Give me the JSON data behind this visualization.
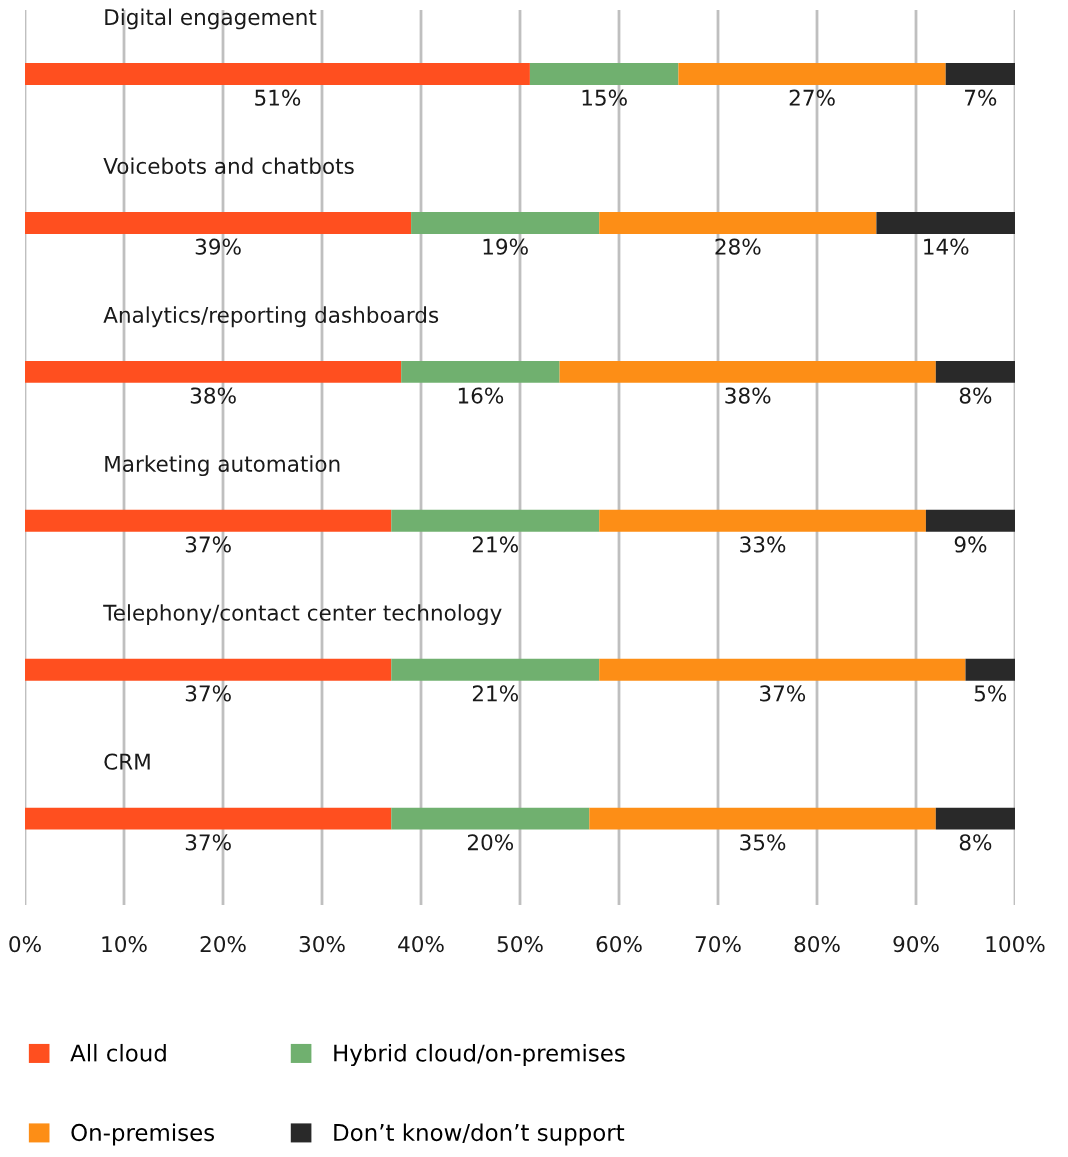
{
  "chart_data": {
    "type": "bar",
    "orientation": "horizontal",
    "stacked": true,
    "categories": [
      "Digital engagement",
      "Voicebots and chatbots",
      "Analytics/reporting dashboards",
      "Marketing automation",
      "Telephony/contact center technology",
      "CRM"
    ],
    "series": [
      {
        "name": "All cloud",
        "color": "#ff4f1f",
        "values": [
          51,
          39,
          38,
          37,
          37,
          37
        ],
        "value_labels": [
          "51%",
          "39%",
          "38%",
          "37%",
          "37%",
          "37%"
        ]
      },
      {
        "name": "Hybrid cloud/on-premises",
        "color": "#70b06f",
        "values": [
          15,
          19,
          16,
          21,
          21,
          20
        ],
        "value_labels": [
          "15%",
          "19%",
          "16%",
          "21%",
          "21%",
          "20%"
        ]
      },
      {
        "name": "On-premises",
        "color": "#fd8e16",
        "values": [
          27,
          28,
          38,
          33,
          37,
          35
        ],
        "value_labels": [
          "27%",
          "28%",
          "38%",
          "33%",
          "37%",
          "35%"
        ]
      },
      {
        "name": "Don’t know/don’t support",
        "color": "#292929",
        "values": [
          7,
          14,
          8,
          9,
          5,
          8
        ],
        "value_labels": [
          "7%",
          "14%",
          "8%",
          "9%",
          "5%",
          "8%"
        ]
      }
    ],
    "xlim": [
      0,
      100
    ],
    "xticks": [
      {
        "value": 0,
        "label": "0%"
      },
      {
        "value": 10,
        "label": "10%"
      },
      {
        "value": 20,
        "label": "20%"
      },
      {
        "value": 30,
        "label": "30%"
      },
      {
        "value": 40,
        "label": "40%"
      },
      {
        "value": 50,
        "label": "50%"
      },
      {
        "value": 60,
        "label": "60%"
      },
      {
        "value": 70,
        "label": "70%"
      },
      {
        "value": 80,
        "label": "80%"
      },
      {
        "value": 90,
        "label": "90%"
      },
      {
        "value": 100,
        "label": "100%"
      }
    ],
    "grid": "x",
    "legend": "bottom"
  }
}
